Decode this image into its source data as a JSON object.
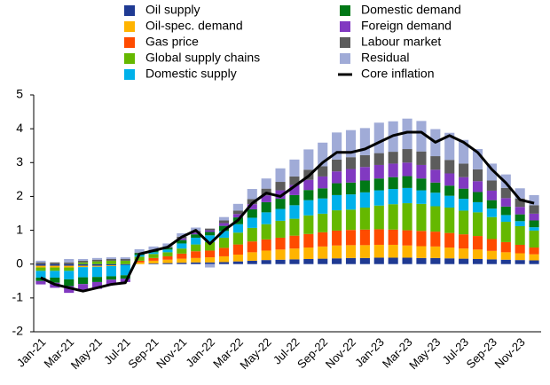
{
  "chart_data": {
    "type": "bar",
    "stacked": true,
    "categories": [
      "Jan-21",
      null,
      "Mar-21",
      null,
      "May-21",
      null,
      "Jul-21",
      null,
      "Sep-21",
      null,
      "Nov-21",
      null,
      "Jan-22",
      null,
      "Mar-22",
      null,
      "May-22",
      null,
      "Jul-22",
      null,
      "Sep-22",
      null,
      "Nov-22",
      null,
      "Jan-23",
      null,
      "Mar-23",
      null,
      "May-23",
      null,
      "Jul-23",
      null,
      "Sep-23",
      null,
      "Nov-23",
      null
    ],
    "series": [
      {
        "name": "Oil supply",
        "color": "#1f3a93",
        "values": [
          -0.05,
          -0.05,
          -0.05,
          -0.05,
          -0.05,
          -0.04,
          -0.03,
          0,
          0.02,
          0.03,
          0.04,
          0.05,
          0.05,
          0.06,
          0.08,
          0.1,
          0.12,
          0.13,
          0.14,
          0.15,
          0.16,
          0.17,
          0.18,
          0.18,
          0.19,
          0.19,
          0.19,
          0.18,
          0.18,
          0.17,
          0.16,
          0.15,
          0.14,
          0.13,
          0.12,
          0.11
        ]
      },
      {
        "name": "Oil-spec. demand",
        "color": "#ffb400",
        "values": [
          -0.05,
          -0.05,
          -0.05,
          -0.04,
          -0.03,
          -0.02,
          0,
          0.05,
          0.08,
          0.1,
          0.12,
          0.13,
          0.15,
          0.17,
          0.2,
          0.25,
          0.28,
          0.3,
          0.32,
          0.34,
          0.36,
          0.38,
          0.38,
          0.38,
          0.38,
          0.38,
          0.36,
          0.35,
          0.34,
          0.32,
          0.3,
          0.28,
          0.25,
          0.22,
          0.2,
          0.18
        ]
      },
      {
        "name": "Gas price",
        "color": "#ff4b00",
        "values": [
          0,
          0,
          0,
          0,
          0,
          0,
          0,
          0.05,
          0.08,
          0.1,
          0.15,
          0.2,
          0.2,
          0.25,
          0.3,
          0.32,
          0.33,
          0.35,
          0.38,
          0.4,
          0.42,
          0.44,
          0.45,
          0.46,
          0.46,
          0.45,
          0.45,
          0.45,
          0.44,
          0.43,
          0.42,
          0.4,
          0.35,
          0.3,
          0.25,
          0.2
        ]
      },
      {
        "name": "Global supply chains",
        "color": "#65b800",
        "values": [
          -0.1,
          -0.1,
          -0.1,
          0.05,
          0.08,
          0.1,
          0.1,
          0.12,
          0.12,
          0.12,
          0.15,
          0.2,
          0.25,
          0.3,
          0.35,
          0.4,
          0.45,
          0.5,
          0.5,
          0.55,
          0.55,
          0.6,
          0.6,
          0.65,
          0.7,
          0.75,
          0.8,
          0.8,
          0.75,
          0.75,
          0.7,
          0.7,
          0.65,
          0.6,
          0.55,
          0.5
        ]
      },
      {
        "name": "Domestic supply",
        "color": "#00b1ea",
        "values": [
          -0.2,
          -0.2,
          -0.25,
          -0.3,
          -0.3,
          -0.3,
          -0.3,
          0.05,
          0.05,
          0.08,
          0.15,
          0.2,
          0.2,
          0.2,
          0.25,
          0.3,
          0.35,
          0.35,
          0.4,
          0.45,
          0.45,
          0.45,
          0.45,
          0.45,
          0.45,
          0.45,
          0.45,
          0.4,
          0.4,
          0.35,
          0.35,
          0.3,
          0.25,
          0.2,
          0.15,
          0.1
        ]
      },
      {
        "name": "Domestic demand",
        "color": "#007816",
        "values": [
          -0.1,
          -0.15,
          -0.2,
          -0.2,
          -0.15,
          -0.1,
          -0.1,
          0.05,
          0.05,
          0.05,
          0.1,
          0.1,
          0.1,
          0.15,
          0.2,
          0.25,
          0.3,
          0.3,
          0.3,
          0.3,
          0.3,
          0.35,
          0.35,
          0.35,
          0.35,
          0.35,
          0.35,
          0.35,
          0.3,
          0.3,
          0.3,
          0.3,
          0.25,
          0.25,
          0.2,
          0.2
        ]
      },
      {
        "name": "Foreign demand",
        "color": "#8139c1",
        "values": [
          -0.1,
          -0.15,
          -0.2,
          -0.2,
          -0.2,
          -0.15,
          -0.1,
          0,
          0,
          0,
          0.05,
          0.05,
          0.05,
          0.08,
          0.1,
          0.15,
          0.2,
          0.25,
          0.3,
          0.3,
          0.35,
          0.35,
          0.4,
          0.4,
          0.4,
          0.4,
          0.4,
          0.4,
          0.38,
          0.36,
          0.34,
          0.32,
          0.28,
          0.25,
          0.22,
          0.2
        ]
      },
      {
        "name": "Labour market",
        "color": "#5c5c5c",
        "values": [
          0.05,
          0.05,
          0.05,
          0.05,
          0.05,
          0.05,
          0.05,
          0.02,
          0.02,
          0.03,
          0.05,
          0.05,
          0.05,
          0.08,
          0.1,
          0.15,
          0.2,
          0.25,
          0.25,
          0.3,
          0.3,
          0.35,
          0.35,
          0.35,
          0.35,
          0.35,
          0.4,
          0.4,
          0.4,
          0.4,
          0.4,
          0.35,
          0.3,
          0.3,
          0.25,
          0.25
        ]
      },
      {
        "name": "Residual",
        "color": "#a0abd7",
        "values": [
          0.05,
          0,
          0.1,
          0.05,
          0.05,
          0.05,
          0.05,
          0.1,
          0.1,
          0.1,
          0.1,
          0.1,
          -0.1,
          0.1,
          0.2,
          0.3,
          0.3,
          0.4,
          0.5,
          0.6,
          0.7,
          0.8,
          0.8,
          0.8,
          0.9,
          0.9,
          0.9,
          0.9,
          0.8,
          0.8,
          0.7,
          0.6,
          0.5,
          0.4,
          0.3,
          0.3
        ]
      }
    ],
    "line": {
      "name": "Core inflation",
      "color": "#000000",
      "values": [
        -0.4,
        -0.6,
        -0.7,
        -0.8,
        -0.7,
        -0.6,
        -0.55,
        0.3,
        0.4,
        0.5,
        0.8,
        1.0,
        0.6,
        1.0,
        1.3,
        1.8,
        2.1,
        2.0,
        2.3,
        2.6,
        3.0,
        3.3,
        3.3,
        3.4,
        3.6,
        3.8,
        3.9,
        3.9,
        3.6,
        3.8,
        3.6,
        3.3,
        2.8,
        2.4,
        1.9,
        1.8
      ]
    },
    "ylim": [
      -2,
      5
    ],
    "yticks": [
      -2,
      -1,
      0,
      1,
      2,
      3,
      4,
      5
    ]
  }
}
